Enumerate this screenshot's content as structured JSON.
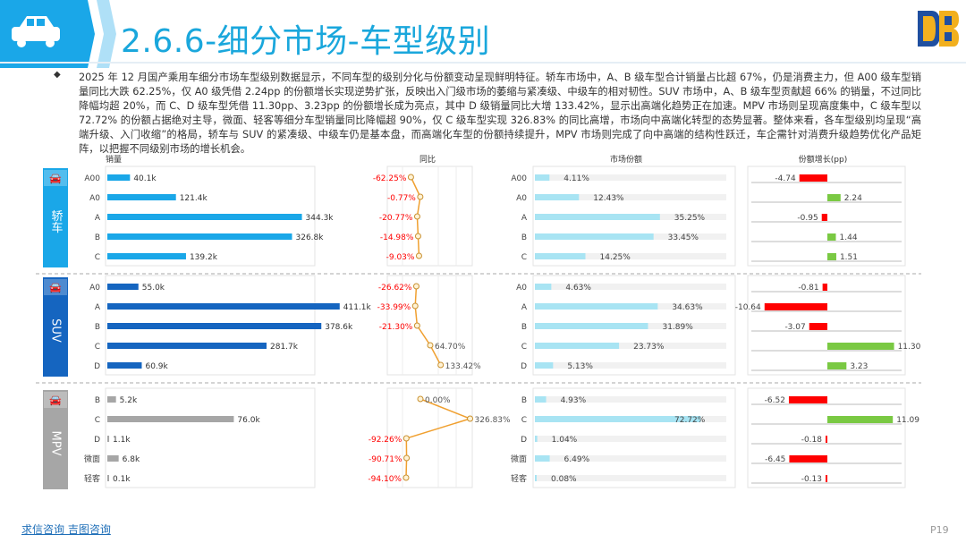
{
  "page": {
    "title": "2.6.6-细分市场-车型级别",
    "bullet": "◆",
    "paragraph": "2025 年 12 月国产乘用车细分市场车型级别数据显示，不同车型的级别分化与份额变动呈现鲜明特征。轿车市场中，A、B 级车型合计销量占比超 67%，仍是消费主力，但 A00 级车型销量同比大跌 62.25%，仅 A0 级凭借 2.24pp 的份额增长实现逆势扩张，反映出入门级市场的萎缩与紧凑级、中级车的相对韧性。SUV 市场中，A、B 级车型贡献超 66% 的销量，不过同比降幅均超 20%，而 C、D 级车型凭借 11.30pp、3.23pp 的份额增长成为亮点，其中 D 级销量同比大增 133.42%，显示出高端化趋势正在加速。MPV 市场则呈现高度集中，C 级车型以 72.72% 的份额占据绝对主导，微面、轻客等细分车型销量同比降幅超 90%，仅 C 级车型实现 326.83% 的同比高增，市场向中高端化转型的态势显著。整体来看，各车型级别均呈现“高端升级、入门收缩”的格局，轿车与 SUV 的紧凑级、中级车仍是基本盘，而高端化车型的份额持续提升，MPV 市场则完成了向中高端的结构性跃迁，车企需针对消费升级趋势优化产品矩阵，以把握不同级别市场的增长机会。",
    "footer": "求信咨询 吉图咨询",
    "page_number": "P19"
  },
  "chart_data": {
    "type": "bar",
    "panels": [
      "销量",
      "同比",
      "市场份额",
      "份额增长(pp)"
    ],
    "groups": [
      {
        "name": "轿车",
        "color": "#1aa7e8",
        "categories": [
          "A00",
          "A0",
          "A",
          "B",
          "C"
        ],
        "sales": [
          40.1,
          121.4,
          344.3,
          326.8,
          139.2
        ],
        "sales_labels": [
          "40.1k",
          "121.4k",
          "344.3k",
          "326.8k",
          "139.2k"
        ],
        "yoy": [
          -62.25,
          -0.77,
          -20.77,
          -14.98,
          -9.03
        ],
        "yoy_labels": [
          "-62.25%",
          "-0.77%",
          "-20.77%",
          "-14.98%",
          "-9.03%"
        ],
        "share": [
          4.11,
          12.43,
          35.25,
          33.45,
          14.25
        ],
        "share_labels": [
          "4.11%",
          "12.43%",
          "35.25%",
          "33.45%",
          "14.25%"
        ],
        "share_change": [
          -4.74,
          2.24,
          -0.95,
          1.44,
          1.51
        ],
        "share_change_labels": [
          "-4.74",
          "2.24",
          "-0.95",
          "1.44",
          "1.51"
        ]
      },
      {
        "name": "SUV",
        "color": "#1565c0",
        "categories": [
          "A0",
          "A",
          "B",
          "C",
          "D"
        ],
        "sales": [
          55.0,
          411.1,
          378.6,
          281.7,
          60.9
        ],
        "sales_labels": [
          "55.0k",
          "411.1k",
          "378.6k",
          "281.7k",
          "60.9k"
        ],
        "yoy": [
          -26.62,
          -33.99,
          -21.3,
          64.7,
          133.42
        ],
        "yoy_labels": [
          "-26.62%",
          "-33.99%",
          "-21.30%",
          "64.70%",
          "133.42%"
        ],
        "share": [
          4.63,
          34.63,
          31.89,
          23.73,
          5.13
        ],
        "share_labels": [
          "4.63%",
          "34.63%",
          "31.89%",
          "23.73%",
          "5.13%"
        ],
        "share_change": [
          -0.81,
          -10.64,
          -3.07,
          11.3,
          3.23
        ],
        "share_change_labels": [
          "-0.81",
          "-10.64",
          "-3.07",
          "11.30",
          "3.23"
        ]
      },
      {
        "name": "MPV",
        "color": "#a6a6a6",
        "categories": [
          "B",
          "C",
          "D",
          "微面",
          "轻客"
        ],
        "sales": [
          5.2,
          76.0,
          1.1,
          6.8,
          0.1
        ],
        "sales_labels": [
          "5.2k",
          "76.0k",
          "1.1k",
          "6.8k",
          "0.1k"
        ],
        "yoy": [
          0.0,
          326.83,
          -92.26,
          -90.71,
          -94.1
        ],
        "yoy_labels": [
          "0.00%",
          "326.83%",
          "-92.26%",
          "-90.71%",
          "-94.10%"
        ],
        "share": [
          4.93,
          72.72,
          1.04,
          6.49,
          0.08
        ],
        "share_labels": [
          "4.93%",
          "72.72%",
          "1.04%",
          "6.49%",
          "0.08%"
        ],
        "share_change": [
          -6.52,
          11.09,
          -0.18,
          -6.45,
          -0.13
        ],
        "share_change_labels": [
          "-6.52",
          "11.09",
          "-0.18",
          "-6.45",
          "-0.13"
        ]
      }
    ],
    "colors": {
      "share_bar": "#a8e4f3",
      "pos_change": "#7ac943",
      "neg_change": "#ff0000",
      "yoy_line": "#f0a030",
      "neg_label": "#ff0000"
    }
  }
}
